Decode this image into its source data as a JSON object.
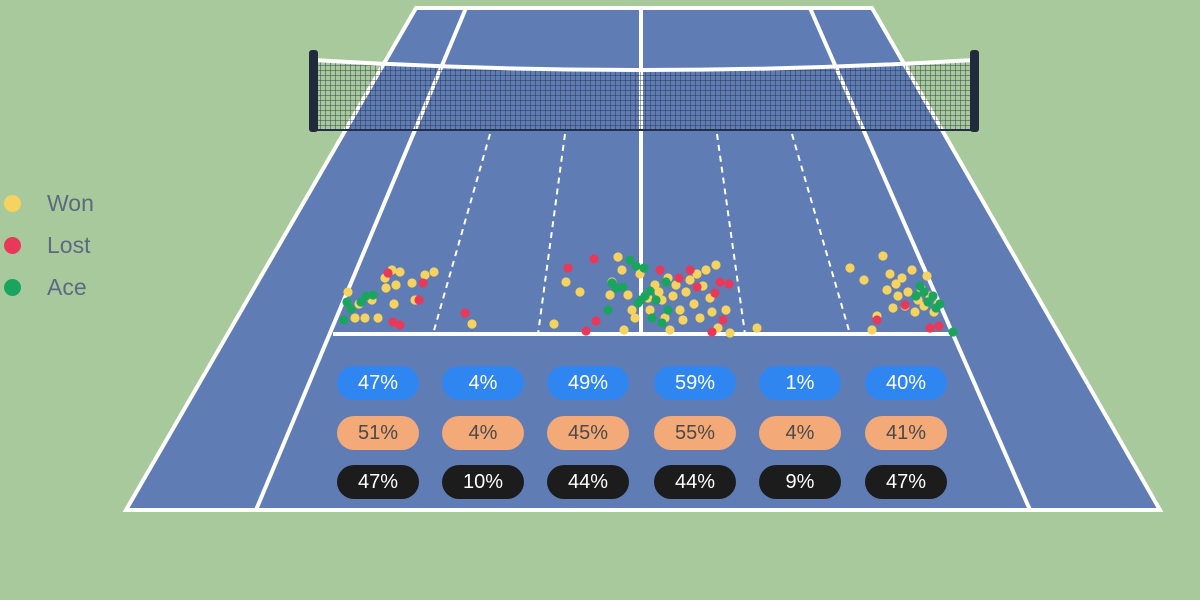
{
  "chart_data": {
    "type": "scatter",
    "title": "",
    "legend": {
      "placement": "left",
      "items": [
        {
          "label": "Won",
          "color": "#f6d35e"
        },
        {
          "label": "Lost",
          "color": "#e8395b"
        },
        {
          "label": "Ace",
          "color": "#1aa55f"
        }
      ]
    },
    "zones": 6,
    "percentages": {
      "won": [
        "47%",
        "4%",
        "49%",
        "59%",
        "1%",
        "40%"
      ],
      "lost": [
        "51%",
        "4%",
        "45%",
        "55%",
        "4%",
        "41%"
      ],
      "ace": [
        "47%",
        "10%",
        "44%",
        "44%",
        "9%",
        "47%"
      ]
    },
    "series": [
      {
        "name": "Won",
        "color": "#f6d35e",
        "points": [
          [
            348,
            292
          ],
          [
            355,
            318
          ],
          [
            359,
            304
          ],
          [
            365,
            318
          ],
          [
            372,
            300
          ],
          [
            378,
            318
          ],
          [
            385,
            278
          ],
          [
            386,
            288
          ],
          [
            392,
            270
          ],
          [
            394,
            304
          ],
          [
            396,
            285
          ],
          [
            400,
            272
          ],
          [
            412,
            283
          ],
          [
            415,
            300
          ],
          [
            425,
            275
          ],
          [
            434,
            272
          ],
          [
            472,
            324
          ],
          [
            554,
            324
          ],
          [
            566,
            282
          ],
          [
            580,
            292
          ],
          [
            610,
            295
          ],
          [
            612,
            282
          ],
          [
            618,
            257
          ],
          [
            622,
            270
          ],
          [
            624,
            330
          ],
          [
            628,
            295
          ],
          [
            632,
            310
          ],
          [
            635,
            318
          ],
          [
            640,
            274
          ],
          [
            648,
            298
          ],
          [
            650,
            310
          ],
          [
            655,
            285
          ],
          [
            659,
            292
          ],
          [
            662,
            300
          ],
          [
            665,
            318
          ],
          [
            668,
            278
          ],
          [
            670,
            330
          ],
          [
            673,
            296
          ],
          [
            676,
            285
          ],
          [
            680,
            310
          ],
          [
            683,
            320
          ],
          [
            686,
            292
          ],
          [
            690,
            280
          ],
          [
            694,
            304
          ],
          [
            697,
            274
          ],
          [
            700,
            318
          ],
          [
            703,
            286
          ],
          [
            706,
            270
          ],
          [
            710,
            298
          ],
          [
            712,
            312
          ],
          [
            716,
            265
          ],
          [
            718,
            328
          ],
          [
            726,
            310
          ],
          [
            730,
            333
          ],
          [
            757,
            328
          ],
          [
            850,
            268
          ],
          [
            864,
            280
          ],
          [
            872,
            330
          ],
          [
            877,
            316
          ],
          [
            883,
            256
          ],
          [
            887,
            290
          ],
          [
            890,
            274
          ],
          [
            893,
            308
          ],
          [
            896,
            284
          ],
          [
            898,
            296
          ],
          [
            902,
            278
          ],
          [
            905,
            306
          ],
          [
            908,
            292
          ],
          [
            912,
            270
          ],
          [
            915,
            312
          ],
          [
            918,
            300
          ],
          [
            921,
            288
          ],
          [
            924,
            306
          ],
          [
            927,
            276
          ],
          [
            930,
            296
          ],
          [
            934,
            312
          ],
          [
            938,
            304
          ]
        ]
      },
      {
        "name": "Lost",
        "color": "#e8395b",
        "points": [
          [
            393,
            322
          ],
          [
            400,
            325
          ],
          [
            419,
            300
          ],
          [
            423,
            283
          ],
          [
            388,
            273
          ],
          [
            465,
            313
          ],
          [
            568,
            268
          ],
          [
            586,
            331
          ],
          [
            594,
            259
          ],
          [
            596,
            321
          ],
          [
            660,
            270
          ],
          [
            679,
            278
          ],
          [
            690,
            270
          ],
          [
            697,
            287
          ],
          [
            712,
            332
          ],
          [
            715,
            293
          ],
          [
            720,
            282
          ],
          [
            723,
            320
          ],
          [
            729,
            284
          ],
          [
            877,
            320
          ],
          [
            905,
            305
          ],
          [
            930,
            328
          ],
          [
            939,
            326
          ]
        ]
      },
      {
        "name": "Ace",
        "color": "#1aa55f",
        "points": [
          [
            344,
            320
          ],
          [
            347,
            302
          ],
          [
            351,
            309
          ],
          [
            361,
            302
          ],
          [
            366,
            296
          ],
          [
            373,
            295
          ],
          [
            608,
            310
          ],
          [
            612,
            283
          ],
          [
            616,
            288
          ],
          [
            623,
            287
          ],
          [
            630,
            260
          ],
          [
            636,
            266
          ],
          [
            638,
            303
          ],
          [
            641,
            300
          ],
          [
            644,
            268
          ],
          [
            645,
            296
          ],
          [
            650,
            291
          ],
          [
            652,
            318
          ],
          [
            656,
            300
          ],
          [
            662,
            323
          ],
          [
            666,
            282
          ],
          [
            668,
            310
          ],
          [
            916,
            296
          ],
          [
            920,
            286
          ],
          [
            924,
            292
          ],
          [
            928,
            302
          ],
          [
            933,
            296
          ],
          [
            936,
            308
          ],
          [
            940,
            304
          ],
          [
            953,
            332
          ]
        ]
      }
    ]
  }
}
